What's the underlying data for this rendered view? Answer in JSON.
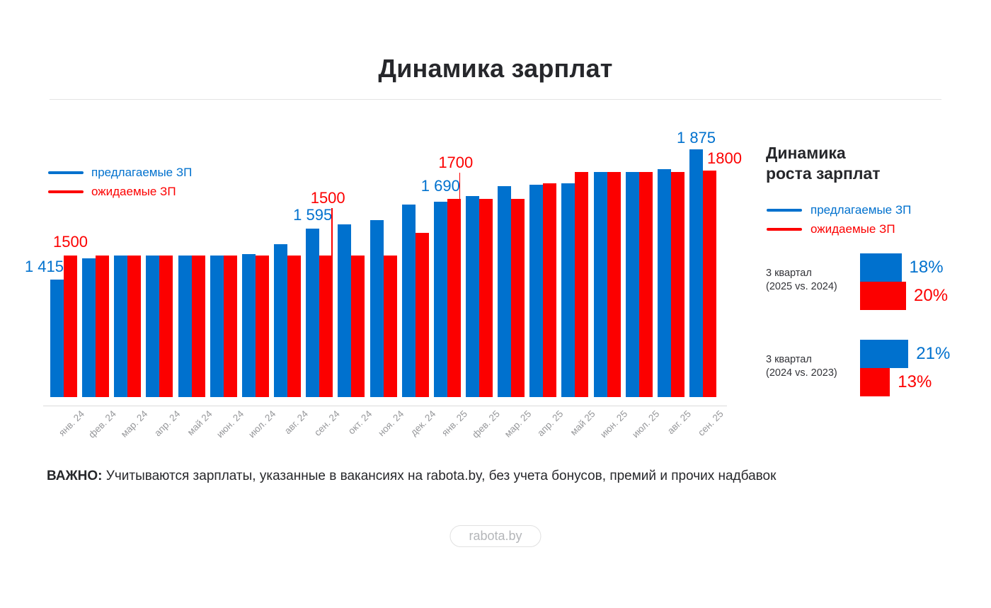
{
  "page": {
    "title": "Динамика зарплат"
  },
  "colors": {
    "offered": "#0071ce",
    "expected": "#fc0000"
  },
  "legend": {
    "offered_label": "предлагаемые ЗП",
    "expected_label": "ожидаемые ЗП"
  },
  "chart_data": {
    "type": "bar",
    "title": "Динамика зарплат",
    "categories": [
      "янв. 24",
      "фев. 24",
      "мар. 24",
      "апр. 24",
      "май 24",
      "июн. 24",
      "июл. 24",
      "авг. 24",
      "сен. 24",
      "окт. 24",
      "ноя. 24",
      "дек. 24",
      "янв. 25",
      "фев. 25",
      "мар. 25",
      "апр. 25",
      "май 25",
      "июн. 25",
      "июл. 25",
      "авг. 25",
      "сен. 25"
    ],
    "series": [
      {
        "name": "предлагаемые ЗП",
        "color_key": "offered",
        "values": [
          1415,
          1490,
          1500,
          1500,
          1500,
          1500,
          1505,
          1540,
          1595,
          1610,
          1625,
          1680,
          1690,
          1710,
          1745,
          1750,
          1755,
          1795,
          1795,
          1805,
          1875
        ]
      },
      {
        "name": "ожидаемые ЗП",
        "color_key": "expected",
        "values": [
          1500,
          1500,
          1500,
          1500,
          1500,
          1500,
          1500,
          1500,
          1500,
          1500,
          1500,
          1580,
          1700,
          1700,
          1700,
          1755,
          1795,
          1795,
          1795,
          1795,
          1800
        ]
      }
    ],
    "ylim": [
      1000,
      1900
    ],
    "grid": false,
    "legend_position": "top-left",
    "annotations": [
      {
        "month": 0,
        "series": "offered",
        "text": "1 415",
        "align": "right",
        "gap": 7
      },
      {
        "month": 0,
        "series": "expected",
        "text": "1500",
        "gap": 8
      },
      {
        "month": 8,
        "series": "offered",
        "text": "1 595",
        "gap": 8
      },
      {
        "month": 8,
        "series": "expected",
        "text": "1500",
        "callout": 67
      },
      {
        "month": 12,
        "series": "offered",
        "text": "1 690",
        "gap": 11
      },
      {
        "month": 12,
        "series": "expected",
        "text": "1700",
        "callout": 37
      },
      {
        "month": 20,
        "series": "offered",
        "text": "1 875",
        "gap": 5
      },
      {
        "month": 20,
        "series": "expected",
        "text": "1800",
        "gap": 6,
        "dx": 21
      }
    ]
  },
  "growth_panel": {
    "title_line1": "Динамика",
    "title_line2": "роста зарплат",
    "groups": [
      {
        "label_line1": "3 квартал",
        "label_line2": "(2025 vs. 2024)",
        "offered_pct": 18,
        "expected_pct": 20,
        "offered_label": "18%",
        "expected_label": "20%"
      },
      {
        "label_line1": "3 квартал",
        "label_line2": "(2024 vs. 2023)",
        "offered_pct": 21,
        "expected_pct": 13,
        "offered_label": "21%",
        "expected_label": "13%"
      }
    ]
  },
  "footnote": {
    "bold": "ВАЖНО:",
    "text": " Учитываются зарплаты, указанные в вакансиях на rabota.by, без учета бонусов, премий и прочих надбавок"
  },
  "badge": {
    "label": "rabota.by"
  }
}
